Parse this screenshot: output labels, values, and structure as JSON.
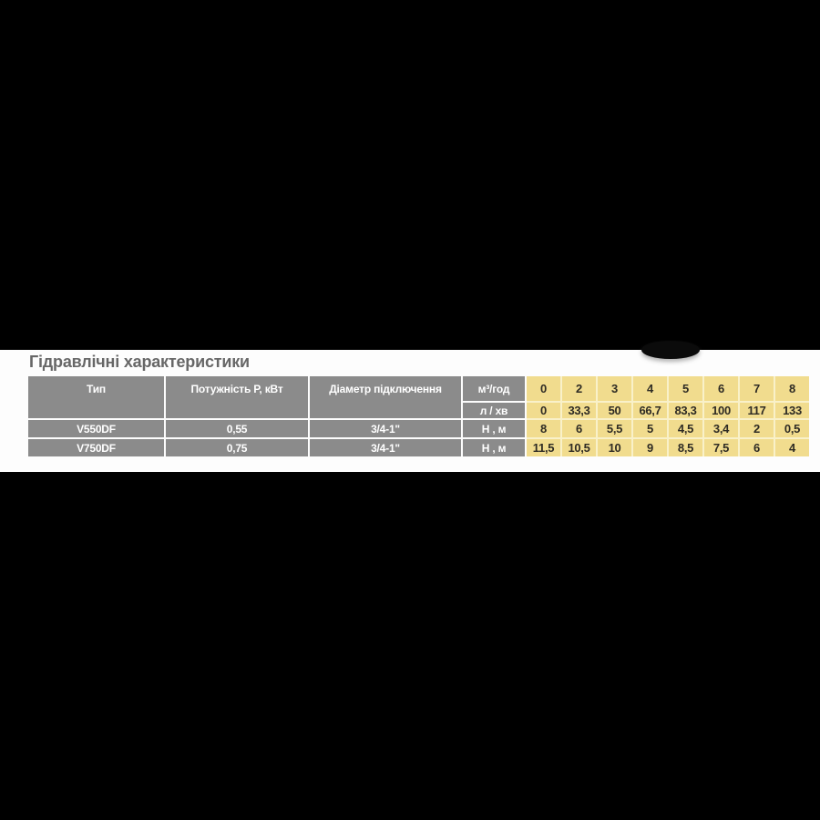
{
  "title": "Гідравлічні характеристики",
  "colors": {
    "backdrop": "#000000",
    "band": "#fdfdfd",
    "cell_gray": "#8b8b8b",
    "cell_yellow": "#f1dc8e",
    "gray_text": "#ffffff",
    "yellow_text": "#2e2b24",
    "title_text": "#676767"
  },
  "table": {
    "columns": {
      "type": "Тип",
      "power": "Потужність Р, кВт",
      "diameter": "Діаметр підключення"
    },
    "flow": {
      "m3h_label": "м³/год",
      "lmin_label": "л / хв",
      "m3h": [
        "0",
        "2",
        "3",
        "4",
        "5",
        "6",
        "7",
        "8"
      ],
      "lmin": [
        "0",
        "33,3",
        "50",
        "66,7",
        "83,3",
        "100",
        "117",
        "133"
      ]
    },
    "rows": [
      {
        "type": "V550DF",
        "power": "0,55",
        "diameter": "3/4-1\"",
        "head_label": "Н , м",
        "head_m": [
          "8",
          "6",
          "5,5",
          "5",
          "4,5",
          "3,4",
          "2",
          "0,5"
        ]
      },
      {
        "type": "V750DF",
        "power": "0,75",
        "diameter": "3/4-1\"",
        "head_label": "Н , м",
        "head_m": [
          "11,5",
          "10,5",
          "10",
          "9",
          "8,5",
          "7,5",
          "6",
          "4"
        ]
      }
    ]
  }
}
